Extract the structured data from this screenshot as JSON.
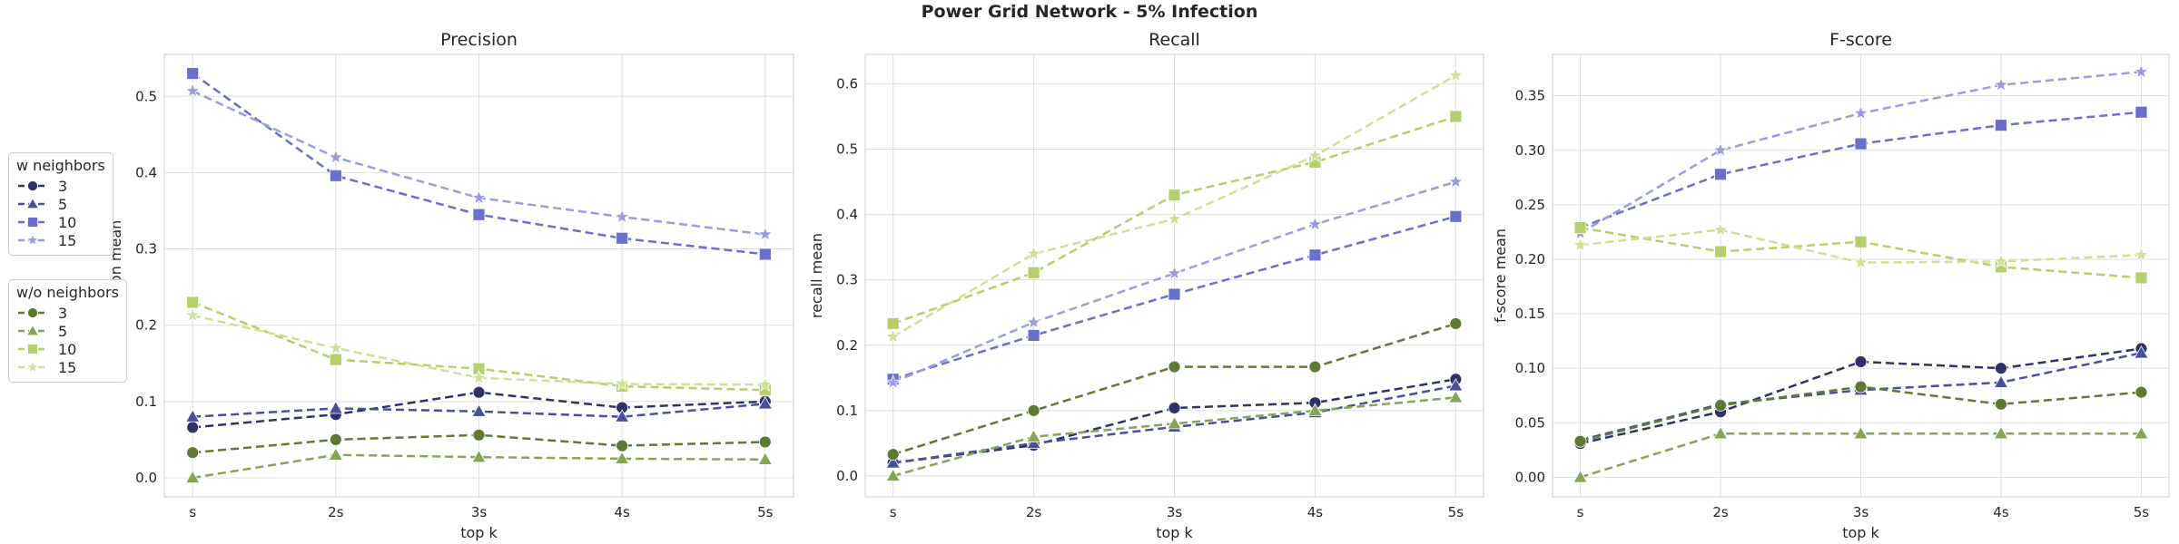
{
  "suptitle": "Power Grid Network - 5% Infection",
  "legend_groups": [
    {
      "title": "w neighbors",
      "items": [
        {
          "label": "3",
          "color": "#2e3268",
          "marker": "circle"
        },
        {
          "label": "5",
          "color": "#4a4f9c",
          "marker": "triangle"
        },
        {
          "label": "10",
          "color": "#6a6fcc",
          "marker": "square"
        },
        {
          "label": "15",
          "color": "#9a9ce0",
          "marker": "star"
        }
      ]
    },
    {
      "title": "w/o neighbors",
      "items": [
        {
          "label": "3",
          "color": "#5e7a32",
          "marker": "circle"
        },
        {
          "label": "5",
          "color": "#86a456",
          "marker": "triangle"
        },
        {
          "label": "10",
          "color": "#b4cf6c",
          "marker": "square"
        },
        {
          "label": "15",
          "color": "#cfdf96",
          "marker": "star"
        }
      ]
    }
  ],
  "chart_data": [
    {
      "type": "line",
      "title": "Precision",
      "xlabel": "top k",
      "ylabel": "precision mean",
      "categories": [
        "s",
        "2s",
        "3s",
        "4s",
        "5s"
      ],
      "ylim": [
        -0.025,
        0.555
      ],
      "yticks": [
        "0.0",
        "0.1",
        "0.2",
        "0.3",
        "0.4",
        "0.5"
      ],
      "grid": true,
      "series": [
        {
          "group": "w neighbors",
          "name": "3",
          "color": "#2e3268",
          "marker": "circle",
          "values": [
            0.066,
            0.083,
            0.112,
            0.092,
            0.1
          ]
        },
        {
          "group": "w neighbors",
          "name": "5",
          "color": "#4a4f9c",
          "marker": "triangle",
          "values": [
            0.08,
            0.091,
            0.087,
            0.08,
            0.097
          ]
        },
        {
          "group": "w neighbors",
          "name": "10",
          "color": "#6a6fcc",
          "marker": "square",
          "values": [
            0.53,
            0.396,
            0.345,
            0.314,
            0.293
          ]
        },
        {
          "group": "w neighbors",
          "name": "15",
          "color": "#9a9ce0",
          "marker": "star",
          "values": [
            0.507,
            0.42,
            0.367,
            0.342,
            0.319
          ]
        },
        {
          "group": "w/o neighbors",
          "name": "3",
          "color": "#5e7a32",
          "marker": "circle",
          "values": [
            0.033,
            0.05,
            0.056,
            0.042,
            0.047
          ]
        },
        {
          "group": "w/o neighbors",
          "name": "5",
          "color": "#86a456",
          "marker": "triangle",
          "values": [
            0.0,
            0.03,
            0.027,
            0.025,
            0.024
          ]
        },
        {
          "group": "w/o neighbors",
          "name": "10",
          "color": "#b4cf6c",
          "marker": "square",
          "values": [
            0.23,
            0.155,
            0.143,
            0.12,
            0.115
          ]
        },
        {
          "group": "w/o neighbors",
          "name": "15",
          "color": "#cfdf96",
          "marker": "star",
          "values": [
            0.213,
            0.17,
            0.131,
            0.123,
            0.122
          ]
        }
      ]
    },
    {
      "type": "line",
      "title": "Recall",
      "xlabel": "top k",
      "ylabel": "recall mean",
      "categories": [
        "s",
        "2s",
        "3s",
        "4s",
        "5s"
      ],
      "ylim": [
        -0.032,
        0.645
      ],
      "yticks": [
        "0.0",
        "0.1",
        "0.2",
        "0.3",
        "0.4",
        "0.5",
        "0.6"
      ],
      "grid": true,
      "series": [
        {
          "group": "w neighbors",
          "name": "3",
          "color": "#2e3268",
          "marker": "circle",
          "values": [
            0.02,
            0.047,
            0.104,
            0.112,
            0.148
          ]
        },
        {
          "group": "w neighbors",
          "name": "5",
          "color": "#4a4f9c",
          "marker": "triangle",
          "values": [
            0.02,
            0.05,
            0.075,
            0.097,
            0.138
          ]
        },
        {
          "group": "w neighbors",
          "name": "10",
          "color": "#6a6fcc",
          "marker": "square",
          "values": [
            0.148,
            0.215,
            0.278,
            0.338,
            0.397
          ]
        },
        {
          "group": "w neighbors",
          "name": "15",
          "color": "#9a9ce0",
          "marker": "star",
          "values": [
            0.143,
            0.235,
            0.31,
            0.385,
            0.45
          ]
        },
        {
          "group": "w/o neighbors",
          "name": "3",
          "color": "#5e7a32",
          "marker": "circle",
          "values": [
            0.033,
            0.1,
            0.167,
            0.167,
            0.233
          ]
        },
        {
          "group": "w/o neighbors",
          "name": "5",
          "color": "#86a456",
          "marker": "triangle",
          "values": [
            0.0,
            0.06,
            0.08,
            0.1,
            0.12
          ]
        },
        {
          "group": "w/o neighbors",
          "name": "10",
          "color": "#b4cf6c",
          "marker": "square",
          "values": [
            0.233,
            0.311,
            0.43,
            0.48,
            0.55
          ]
        },
        {
          "group": "w/o neighbors",
          "name": "15",
          "color": "#cfdf96",
          "marker": "star",
          "values": [
            0.213,
            0.34,
            0.393,
            0.49,
            0.613
          ]
        }
      ]
    },
    {
      "type": "line",
      "title": "F-score",
      "xlabel": "top k",
      "ylabel": "f-score mean",
      "categories": [
        "s",
        "2s",
        "3s",
        "4s",
        "5s"
      ],
      "ylim": [
        -0.018,
        0.388
      ],
      "yticks": [
        "0.00",
        "0.05",
        "0.10",
        "0.15",
        "0.20",
        "0.25",
        "0.30",
        "0.35"
      ],
      "grid": true,
      "series": [
        {
          "group": "w neighbors",
          "name": "3",
          "color": "#2e3268",
          "marker": "circle",
          "values": [
            0.031,
            0.06,
            0.106,
            0.1,
            0.118
          ]
        },
        {
          "group": "w neighbors",
          "name": "5",
          "color": "#4a4f9c",
          "marker": "triangle",
          "values": [
            0.034,
            0.067,
            0.08,
            0.087,
            0.114
          ]
        },
        {
          "group": "w neighbors",
          "name": "10",
          "color": "#6a6fcc",
          "marker": "square",
          "values": [
            0.229,
            0.278,
            0.306,
            0.323,
            0.335
          ]
        },
        {
          "group": "w neighbors",
          "name": "15",
          "color": "#9a9ce0",
          "marker": "star",
          "values": [
            0.224,
            0.3,
            0.334,
            0.36,
            0.372
          ]
        },
        {
          "group": "w/o neighbors",
          "name": "3",
          "color": "#5e7a32",
          "marker": "circle",
          "values": [
            0.033,
            0.066,
            0.083,
            0.067,
            0.078
          ]
        },
        {
          "group": "w/o neighbors",
          "name": "5",
          "color": "#86a456",
          "marker": "triangle",
          "values": [
            0.0,
            0.04,
            0.04,
            0.04,
            0.04
          ]
        },
        {
          "group": "w/o neighbors",
          "name": "10",
          "color": "#b4cf6c",
          "marker": "square",
          "values": [
            0.229,
            0.207,
            0.216,
            0.193,
            0.183
          ]
        },
        {
          "group": "w/o neighbors",
          "name": "15",
          "color": "#cfdf96",
          "marker": "star",
          "values": [
            0.213,
            0.227,
            0.197,
            0.198,
            0.204
          ]
        }
      ]
    }
  ]
}
